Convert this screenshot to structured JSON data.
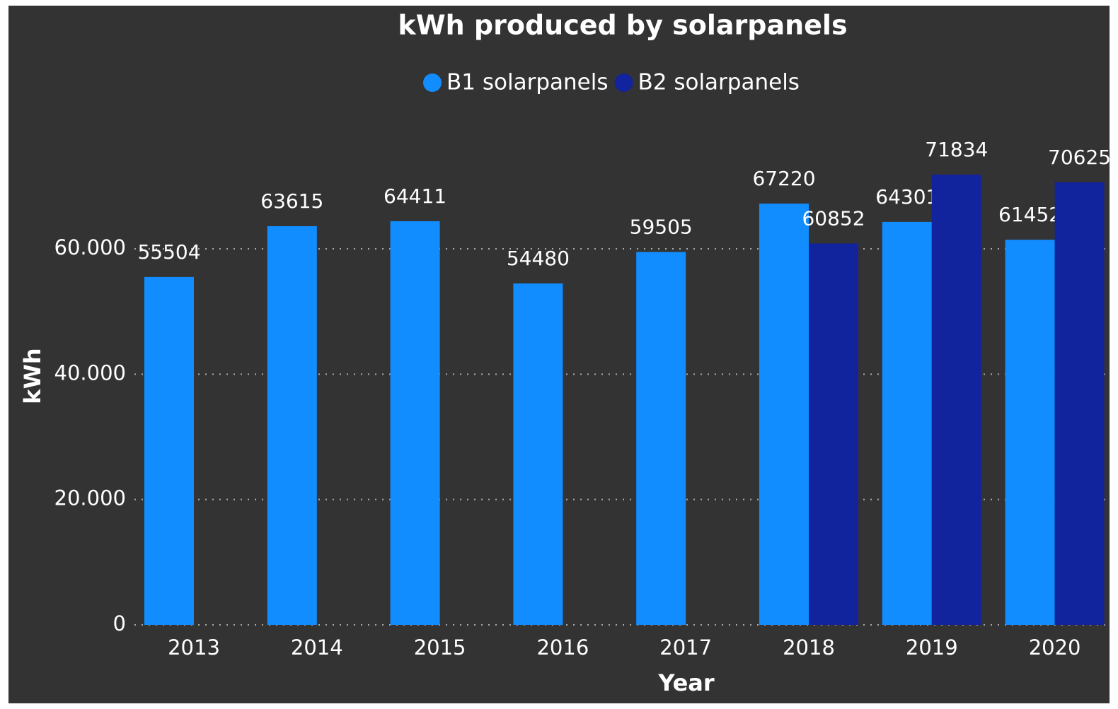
{
  "chart_data": {
    "type": "bar",
    "title": "kWh produced by solarpanels",
    "xlabel": "Year",
    "ylabel": "kWh",
    "categories": [
      "2013",
      "2014",
      "2015",
      "2016",
      "2017",
      "2018",
      "2019",
      "2020"
    ],
    "series": [
      {
        "name": "B1 solarpanels",
        "color": "#118dff",
        "values": [
          55504,
          63615,
          64411,
          54480,
          59505,
          67220,
          64301,
          61452
        ]
      },
      {
        "name": "B2 solarpanels",
        "color": "#12239e",
        "values": [
          null,
          null,
          null,
          null,
          null,
          60852,
          71834,
          70625
        ]
      }
    ],
    "ylim": [
      0,
      80000
    ],
    "yticks": [
      0,
      {
        "value": 20000,
        "label": "20.000"
      },
      {
        "value": 40000,
        "label": "40.000"
      },
      {
        "value": 60000,
        "label": "60.000"
      }
    ],
    "grid": true
  }
}
